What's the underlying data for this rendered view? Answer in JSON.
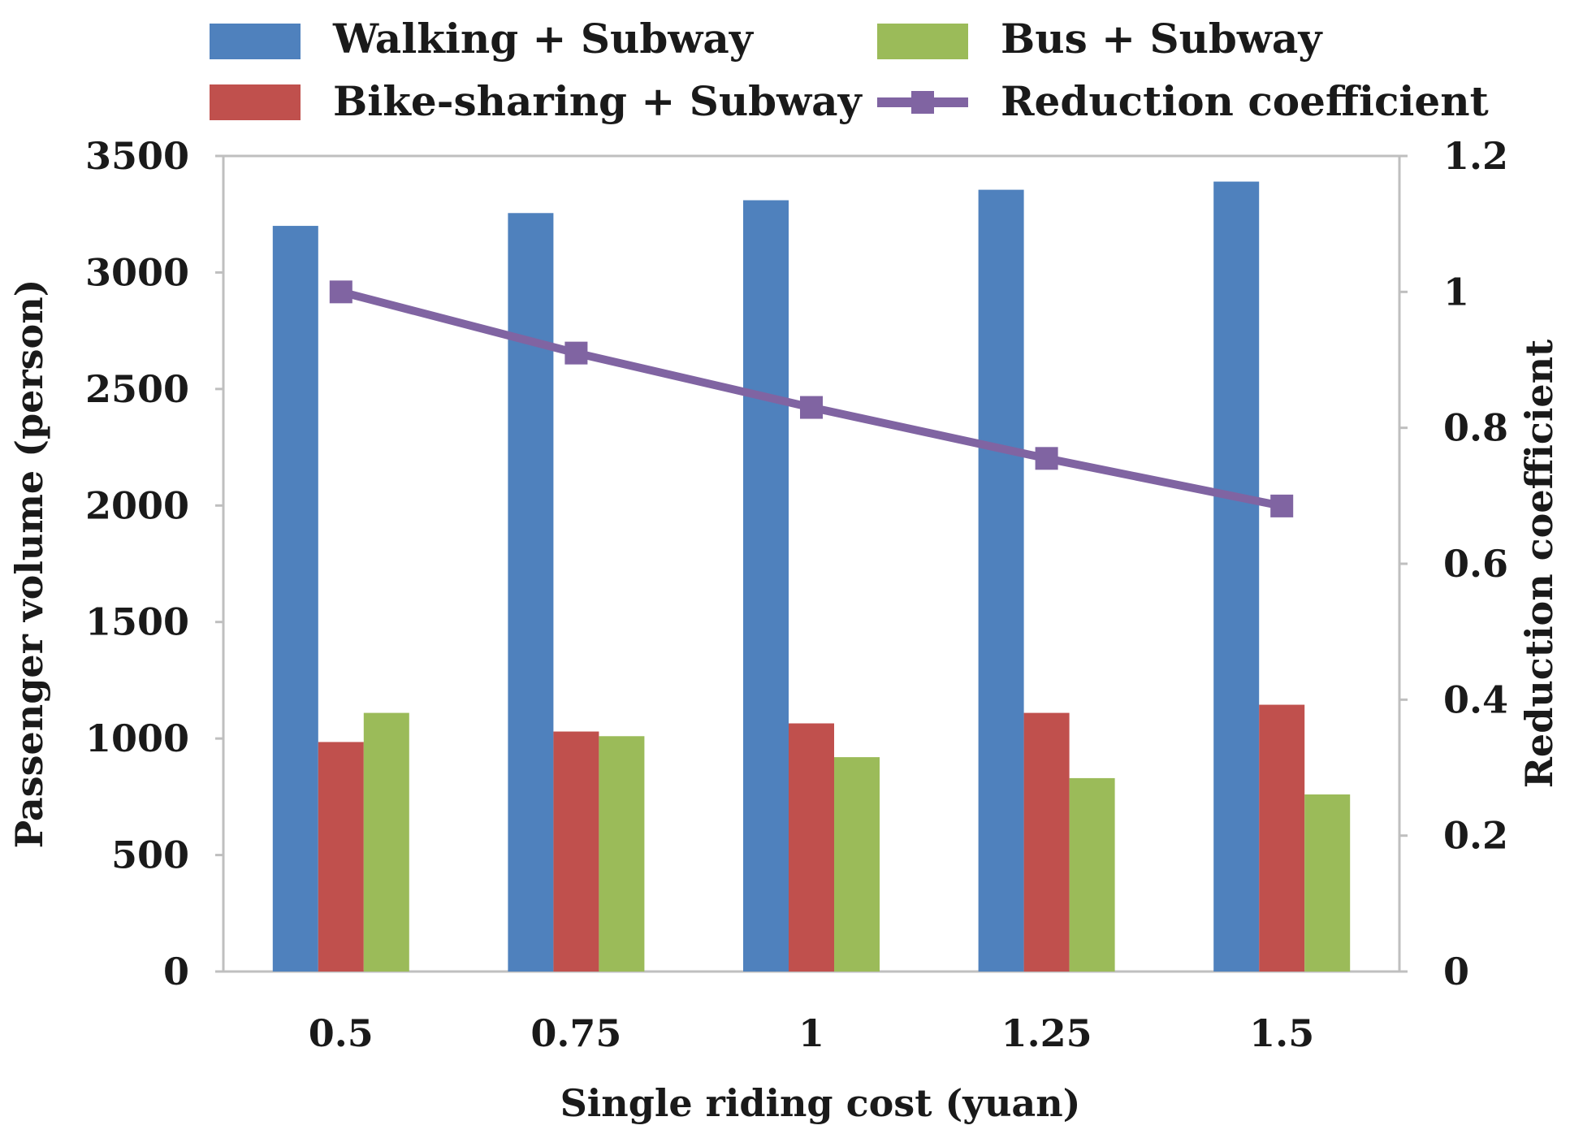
{
  "chart_data": {
    "type": "bar",
    "categories": [
      "0.5",
      "0.75",
      "1",
      "1.25",
      "1.5"
    ],
    "xlabel": "Single riding cost (yuan)",
    "ylabel": "Passenger volume (person)",
    "y2label": "Reduction coefficient",
    "ylim": [
      0,
      3500
    ],
    "y2lim": [
      0,
      1.2
    ],
    "yticks": [
      "0",
      "500",
      "1000",
      "1500",
      "2000",
      "2500",
      "3000",
      "3500"
    ],
    "y2ticks": [
      "0",
      "0.2",
      "0.4",
      "0.6",
      "0.8",
      "1",
      "1.2"
    ],
    "grid": false,
    "legend_position": "top",
    "series": [
      {
        "name": "Walking + Subway",
        "type": "bar",
        "axis": "left",
        "color": "#4f81bd",
        "values": [
          3200,
          3255,
          3310,
          3355,
          3390
        ]
      },
      {
        "name": "Bike-sharing + Subway",
        "type": "bar",
        "axis": "left",
        "color": "#c0504d",
        "values": [
          985,
          1030,
          1065,
          1110,
          1145
        ]
      },
      {
        "name": "Bus + Subway",
        "type": "bar",
        "axis": "left",
        "color": "#9bbb59",
        "values": [
          1110,
          1010,
          920,
          830,
          760
        ]
      },
      {
        "name": "Reduction coefficient",
        "type": "line",
        "axis": "right",
        "color": "#8064a2",
        "values": [
          1.0,
          0.91,
          0.83,
          0.755,
          0.685
        ]
      }
    ]
  }
}
